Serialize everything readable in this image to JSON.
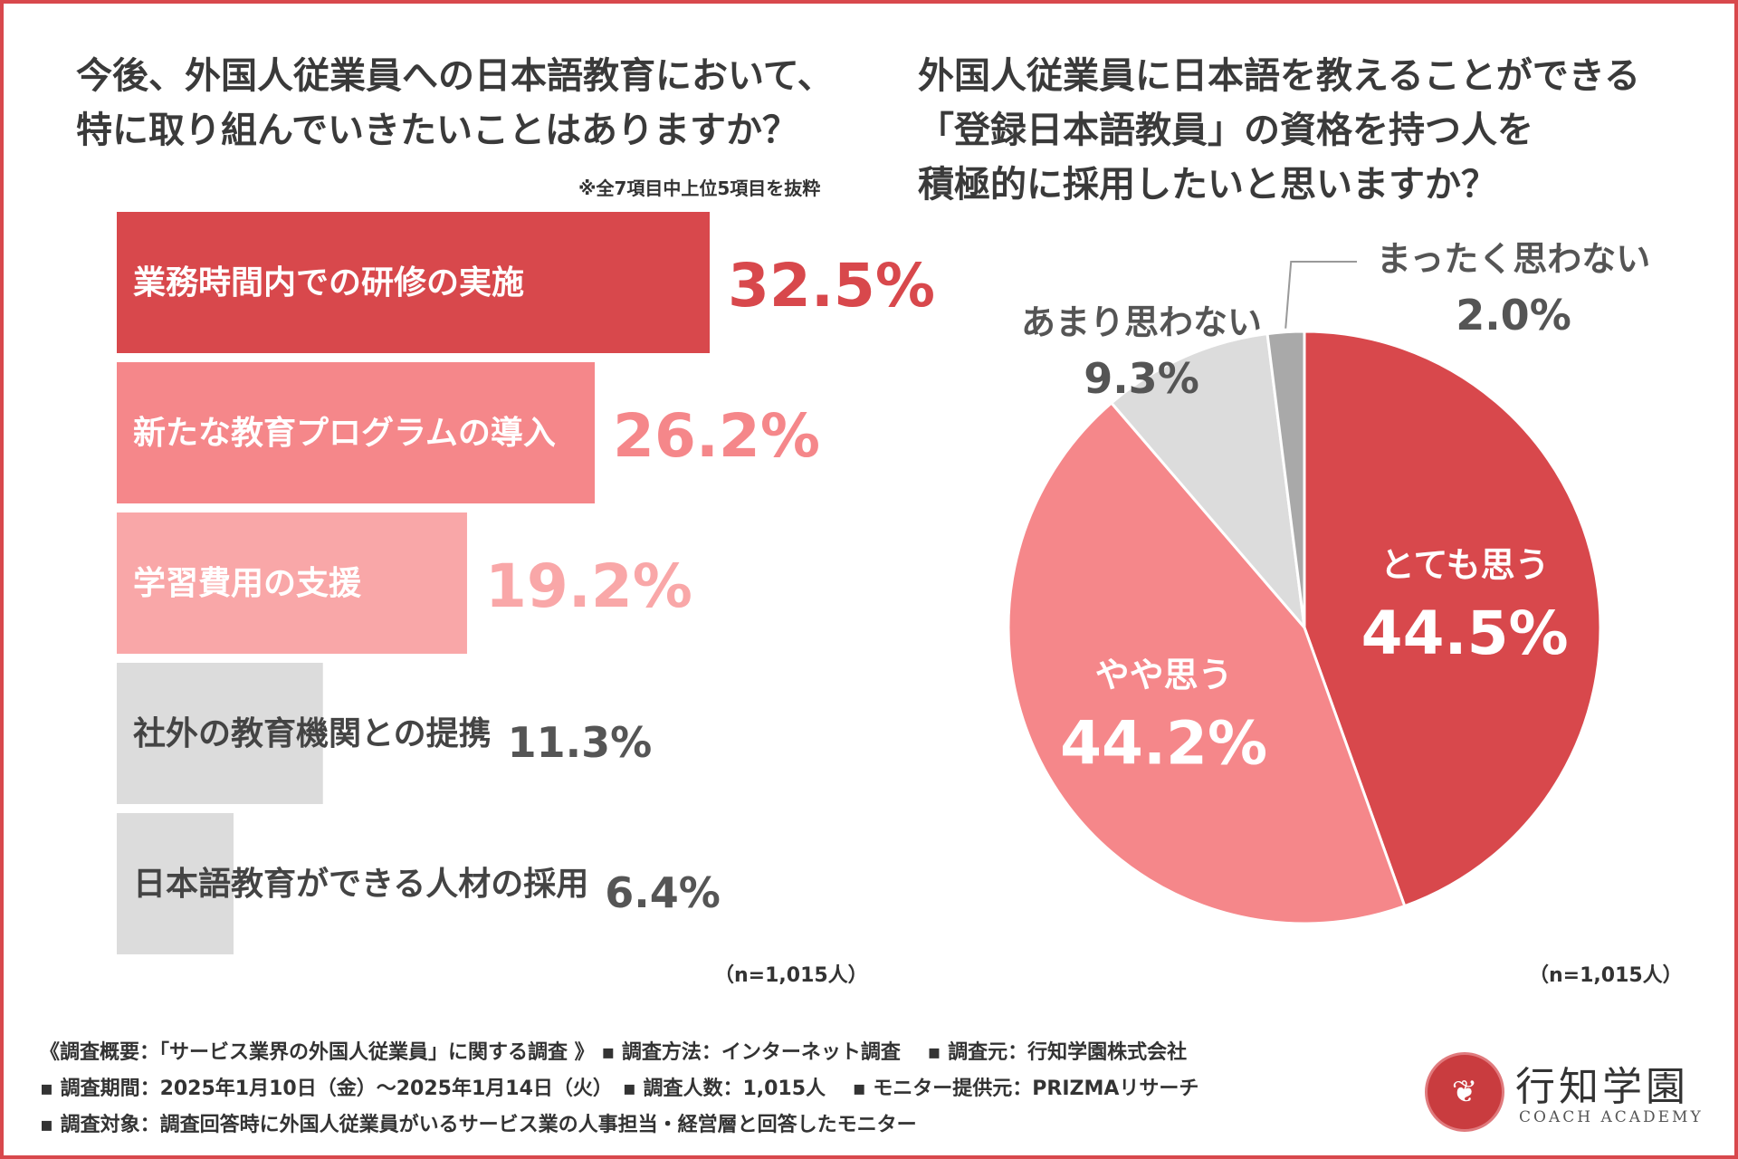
{
  "left_title": [
    "今後、外国人従業員への日本語教育において、",
    "特に取り組んでいきたいことはありますか？"
  ],
  "note": "※全7項目中上位5項目を抜粋",
  "right_title": [
    "外国人従業員に日本語を教えることができる",
    "「登録日本語教員」の資格を持つ人を",
    "積極的に採用したいと思いますか？"
  ],
  "n_label": "（n=1,015人）",
  "colors": {
    "frame": "#d8484c",
    "red": "#d8484c",
    "pink": "#f5878a",
    "light_pink": "#f9a7a8",
    "gray": "#dcdcdc",
    "dark_gray": "#a9a9a9",
    "text": "#3a3a3a"
  },
  "chart_data": [
    {
      "type": "bar",
      "orientation": "horizontal",
      "categories": [
        "業務時間内での研修の実施",
        "新たな教育プログラムの導入",
        "学習費用の支援",
        "社外の教育機関との提携",
        "日本語教育ができる人材の採用"
      ],
      "values": [
        32.5,
        26.2,
        19.2,
        11.3,
        6.4
      ],
      "value_labels": [
        "32.5%",
        "26.2%",
        "19.2%",
        "11.3%",
        "6.4%"
      ],
      "unit": "%",
      "colors": [
        "#d8484c",
        "#f5878a",
        "#f9a7a8",
        "#dcdcdc",
        "#dcdcdc"
      ],
      "label_colors": [
        "#d8484c",
        "#f5878a",
        "#f9a7a8",
        "#555555",
        "#555555"
      ],
      "xlim": [
        0,
        40
      ]
    },
    {
      "type": "pie",
      "categories": [
        "とても思う",
        "やや思う",
        "あまり思わない",
        "まったく思わない"
      ],
      "values": [
        44.5,
        44.2,
        9.3,
        2.0
      ],
      "value_labels": [
        "44.5%",
        "44.2%",
        "9.3%",
        "2.0%"
      ],
      "colors": [
        "#d8484c",
        "#f5878a",
        "#dcdcdc",
        "#a9a9a9"
      ],
      "start": "12 o'clock, clockwise"
    }
  ],
  "footer": [
    "《調査概要：「サービス業界の外国人従業員」に関する調査 》 ▪ 調査方法：インターネット調査　 ▪ 調査元：行知学園株式会社",
    "▪ 調査期間：2025年1月10日（金）〜2025年1月14日（火）　▪ 調査人数：1,015人　 ▪ モニター提供元：PRIZMAリサーチ",
    "▪ 調査対象：調査回答時に外国人従業員がいるサービス業の人事担当・経営層と回答したモニター"
  ],
  "logo": {
    "jp": "行知学園",
    "en": "COACH ACADEMY",
    "icon": "tree-icon"
  }
}
